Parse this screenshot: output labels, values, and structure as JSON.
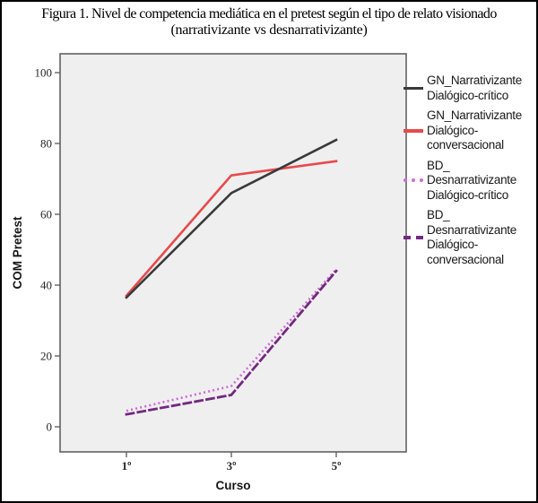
{
  "figure": {
    "title": "Figura 1. Nivel de competencia mediática en el pretest según el tipo de relato visionado",
    "subtitle": "(narrativizante vs desnarrativizante)"
  },
  "chart_data": {
    "type": "line",
    "title": "Figura 1. Nivel de competencia mediática en el pretest según el tipo de relato visionado (narrativizante vs desnarrativizante)",
    "xlabel": "Curso",
    "ylabel": "COM Pretest",
    "categories": [
      "1º",
      "3º",
      "5º"
    ],
    "ylim": [
      0,
      100
    ],
    "yticks": [
      0,
      20,
      40,
      60,
      80,
      100
    ],
    "grid": false,
    "legend_position": "right",
    "plot_bg": "#f0eff0",
    "frame_color": "#616161",
    "tick_color": "#595959",
    "series": [
      {
        "name": "GN_Narrativizante Dialógico-crítico",
        "legend_lines": [
          "GN_Narrativizante",
          "Dialógico-crítico"
        ],
        "values": [
          36.5,
          66,
          81
        ],
        "color": "#3a3a3a",
        "style": "solid"
      },
      {
        "name": "GN_Narrativizante Dialógico-conversacional",
        "legend_lines": [
          "GN_Narrativizante",
          "Dialógico-",
          "conversacional"
        ],
        "values": [
          37,
          71,
          75
        ],
        "color": "#e74a4a",
        "style": "solid"
      },
      {
        "name": "BD_Desnarrativizante Dialógico-crítico",
        "legend_lines": [
          "BD_",
          "Desnarrativizante",
          "Dialógico-crítico"
        ],
        "values": [
          4.5,
          11.5,
          44.5
        ],
        "color": "#cb6bd6",
        "style": "dotted"
      },
      {
        "name": "BD_Desnarrativizante Dialógico-conversacional",
        "legend_lines": [
          "BD_",
          "Desnarrativizante",
          "Dialógico-",
          "conversacional"
        ],
        "values": [
          3.5,
          9,
          44
        ],
        "color": "#73297f",
        "style": "dashed"
      }
    ]
  }
}
